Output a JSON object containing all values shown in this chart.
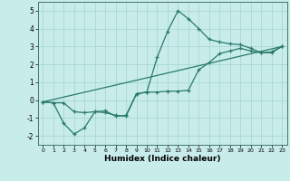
{
  "xlabel": "Humidex (Indice chaleur)",
  "background_color": "#c8ecea",
  "grid_color": "#a8d8d4",
  "line_color": "#2a7a6a",
  "xlim": [
    -0.5,
    23.5
  ],
  "ylim": [
    -2.5,
    5.5
  ],
  "xticks": [
    0,
    1,
    2,
    3,
    4,
    5,
    6,
    7,
    8,
    9,
    10,
    11,
    12,
    13,
    14,
    15,
    16,
    17,
    18,
    19,
    20,
    21,
    22,
    23
  ],
  "yticks": [
    -2,
    -1,
    0,
    1,
    2,
    3,
    4,
    5
  ],
  "line1_x": [
    0,
    1,
    2,
    3,
    4,
    5,
    6,
    7,
    8,
    9,
    10,
    11,
    12,
    13,
    14,
    15,
    16,
    17,
    18,
    19,
    20,
    21,
    22,
    23
  ],
  "line1_y": [
    -0.1,
    -0.15,
    -0.15,
    -0.65,
    -0.7,
    -0.65,
    -0.7,
    -0.85,
    -0.9,
    0.35,
    0.45,
    2.4,
    3.85,
    5.0,
    4.55,
    4.0,
    3.4,
    3.25,
    3.15,
    3.1,
    2.9,
    2.65,
    2.65,
    3.0
  ],
  "line2_x": [
    0,
    1,
    2,
    3,
    4,
    5,
    6,
    7,
    8,
    9,
    10,
    11,
    12,
    13,
    14,
    15,
    16,
    17,
    18,
    19,
    20,
    21,
    22,
    23
  ],
  "line2_y": [
    -0.1,
    -0.15,
    -1.3,
    -1.9,
    -1.55,
    -0.65,
    -0.6,
    -0.9,
    -0.85,
    0.35,
    0.45,
    0.45,
    0.5,
    0.5,
    0.55,
    1.7,
    2.1,
    2.6,
    2.75,
    2.9,
    2.75,
    2.65,
    2.7,
    3.0
  ],
  "line3_x": [
    0,
    23
  ],
  "line3_y": [
    -0.1,
    3.0
  ]
}
